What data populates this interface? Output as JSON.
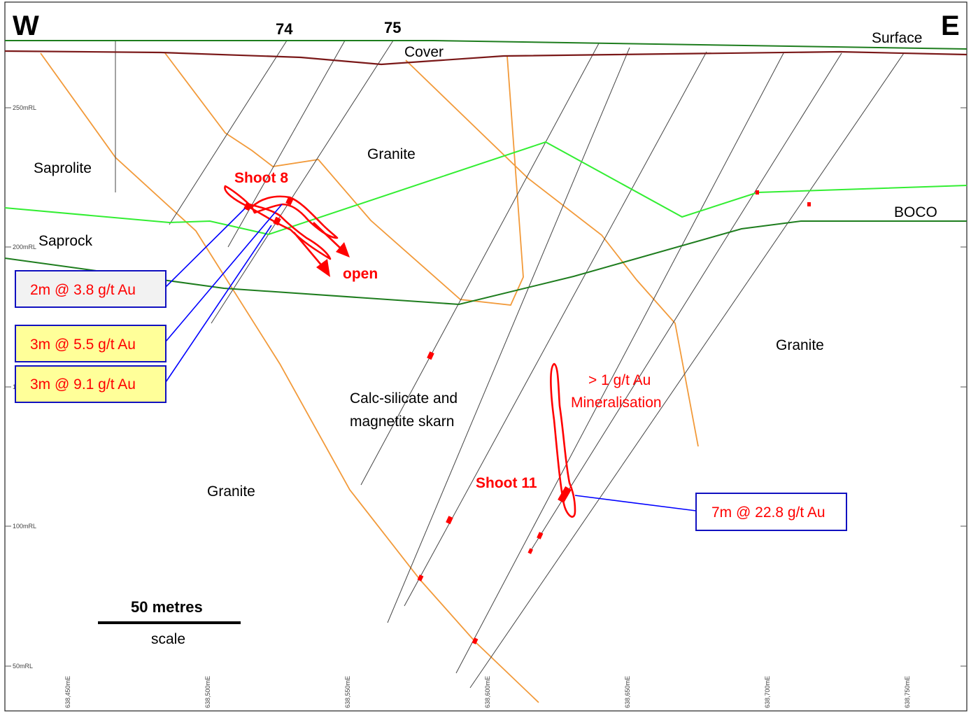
{
  "compass": {
    "west": "W",
    "east": "E"
  },
  "holes": {
    "h74": "74",
    "h75": "75"
  },
  "rl_labels": [
    "250mRL",
    "200mRL",
    "1",
    "100mRL",
    "50mRL"
  ],
  "easting_labels": [
    "638,450mE",
    "638,500mE",
    "638,550mE",
    "638,600mE",
    "638,650mE",
    "638,700mE",
    "638,750mE"
  ],
  "units": {
    "cover": "Cover",
    "surface": "Surface",
    "granite_top": "Granite",
    "saprolite": "Saprolite",
    "saprock": "Saprock",
    "boco": "BOCO",
    "granite_right": "Granite",
    "calc_silicate_1": "Calc-silicate and",
    "calc_silicate_2": "magnetite skarn",
    "granite_bottom": "Granite"
  },
  "shoots": {
    "shoot8": "Shoot 8",
    "open": "open",
    "mineralisation_1": "> 1 g/t Au",
    "mineralisation_2": "Mineralisation",
    "shoot11": "Shoot 11"
  },
  "intercepts": [
    {
      "label": "2m @ 3.8 g/t Au",
      "fill": "#f2f2f2"
    },
    {
      "label": "3m @ 5.5 g/t Au",
      "fill": "#ffff99"
    },
    {
      "label": "3m @ 9.1 g/t Au",
      "fill": "#ffff99"
    },
    {
      "label": "7m @ 22.8 g/t Au",
      "fill": "#ffffff"
    }
  ],
  "scale": {
    "length": "50 metres",
    "word": "scale"
  },
  "colors": {
    "lithology_contact": "#f29a3a",
    "saprock_boundary": "#33ee33",
    "boco": "#1e7d1e",
    "cover_base": "#7a1818",
    "mineralisation": "#ff0000",
    "intercept_box_border": "#1010c0",
    "leader_line": "#0000ff"
  }
}
